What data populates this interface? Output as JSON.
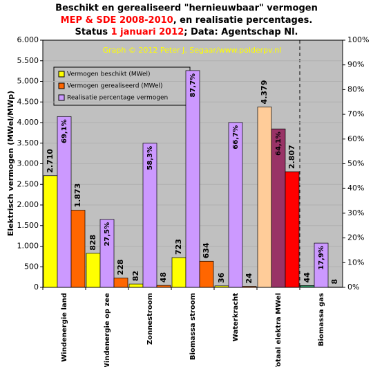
{
  "chart_data": {
    "type": "bar",
    "title": "Beschikt en gerealiseerd \"hernieuwbaar\" vermogen",
    "subtitle_lines": [
      [
        {
          "text": "MEP & SDE 2008-2010",
          "color": "#ff0000"
        },
        {
          "text": ", en realisatie percentages.",
          "color": "#000000"
        }
      ],
      [
        {
          "text": "Status ",
          "color": "#000000"
        },
        {
          "text": "1 januari 2012",
          "color": "#ff0000"
        },
        {
          "text": "; Data: Agentschap Nl.",
          "color": "#000000"
        }
      ]
    ],
    "annotation": "Graph © 2012 Peter J. Segaar/www.polderpv.nl",
    "y_label": "Elektrisch vermogen (MWel/MWp)",
    "categories": [
      "Windenergie land",
      "Windenergie op zee",
      "Zonnestroom",
      "Biomassa stroom",
      "Waterkracht",
      "Totaal elektra MWel",
      "Biomassa gas"
    ],
    "series": [
      {
        "name": "Vermogen beschikt (MWel)",
        "color": "#ffff00",
        "colors": [
          "#ffff00",
          "#ffff00",
          "#ffff00",
          "#ffff00",
          "#ffff00",
          "#ffcc99",
          "#339966"
        ],
        "values": [
          2710,
          828,
          82,
          723,
          36,
          4379,
          44
        ],
        "value_labels": [
          "2.710",
          "828",
          "82",
          "723",
          "36",
          "4.379",
          "44"
        ]
      },
      {
        "name": "Realisatie percentage vermogen",
        "color": "#cc99ff",
        "colors": [
          "#cc99ff",
          "#cc99ff",
          "#cc99ff",
          "#cc99ff",
          "#cc99ff",
          "#993366",
          "#cc99ff"
        ],
        "axis": "y2",
        "values": [
          69.1,
          27.5,
          58.3,
          87.7,
          66.7,
          64.1,
          17.9
        ],
        "value_labels": [
          "69,1%",
          "27,5%",
          "58,3%",
          "87,7%",
          "66,7%",
          "64,1%",
          "17,9%"
        ]
      },
      {
        "name": "Vermogen gerealiseerd (MWel)",
        "color": "#ff6600",
        "colors": [
          "#ff6600",
          "#ff6600",
          "#ff6600",
          "#ff6600",
          "#ff6600",
          "#ff0000",
          "#ff6600"
        ],
        "values": [
          1873,
          228,
          48,
          634,
          24,
          2807,
          8
        ],
        "value_labels": [
          "1.873",
          "228",
          "48",
          "634",
          "24",
          "2.807",
          "8"
        ]
      }
    ],
    "legend_order": [
      0,
      2,
      1
    ],
    "ylim": [
      0,
      6000
    ],
    "yticks": [
      0,
      500,
      {
        "value": 1000,
        "label": "1.000"
      },
      {
        "value": 1500,
        "label": "1.500"
      },
      {
        "value": 2000,
        "label": "2.000"
      },
      {
        "value": 2500,
        "label": "2.500"
      },
      {
        "value": 3000,
        "label": "3.000"
      },
      {
        "value": 3500,
        "label": "3.500"
      },
      {
        "value": 4000,
        "label": "4.000"
      },
      {
        "value": 4500,
        "label": "4.500"
      },
      {
        "value": 5000,
        "label": "5.000"
      },
      {
        "value": 5500,
        "label": "5.500"
      },
      {
        "value": 6000,
        "label": "6.000"
      }
    ],
    "y2lim": [
      0,
      100
    ],
    "y2ticks": [
      {
        "value": 0,
        "label": "0%"
      },
      {
        "value": 10,
        "label": "10%"
      },
      {
        "value": 20,
        "label": "20%"
      },
      {
        "value": 30,
        "label": "30%"
      },
      {
        "value": 40,
        "label": "40%"
      },
      {
        "value": 50,
        "label": "50%"
      },
      {
        "value": 60,
        "label": "60%"
      },
      {
        "value": 70,
        "label": "70%"
      },
      {
        "value": 80,
        "label": "80%"
      },
      {
        "value": 90,
        "label": "90%"
      },
      {
        "value": 100,
        "label": "100%"
      }
    ],
    "grid": true
  }
}
